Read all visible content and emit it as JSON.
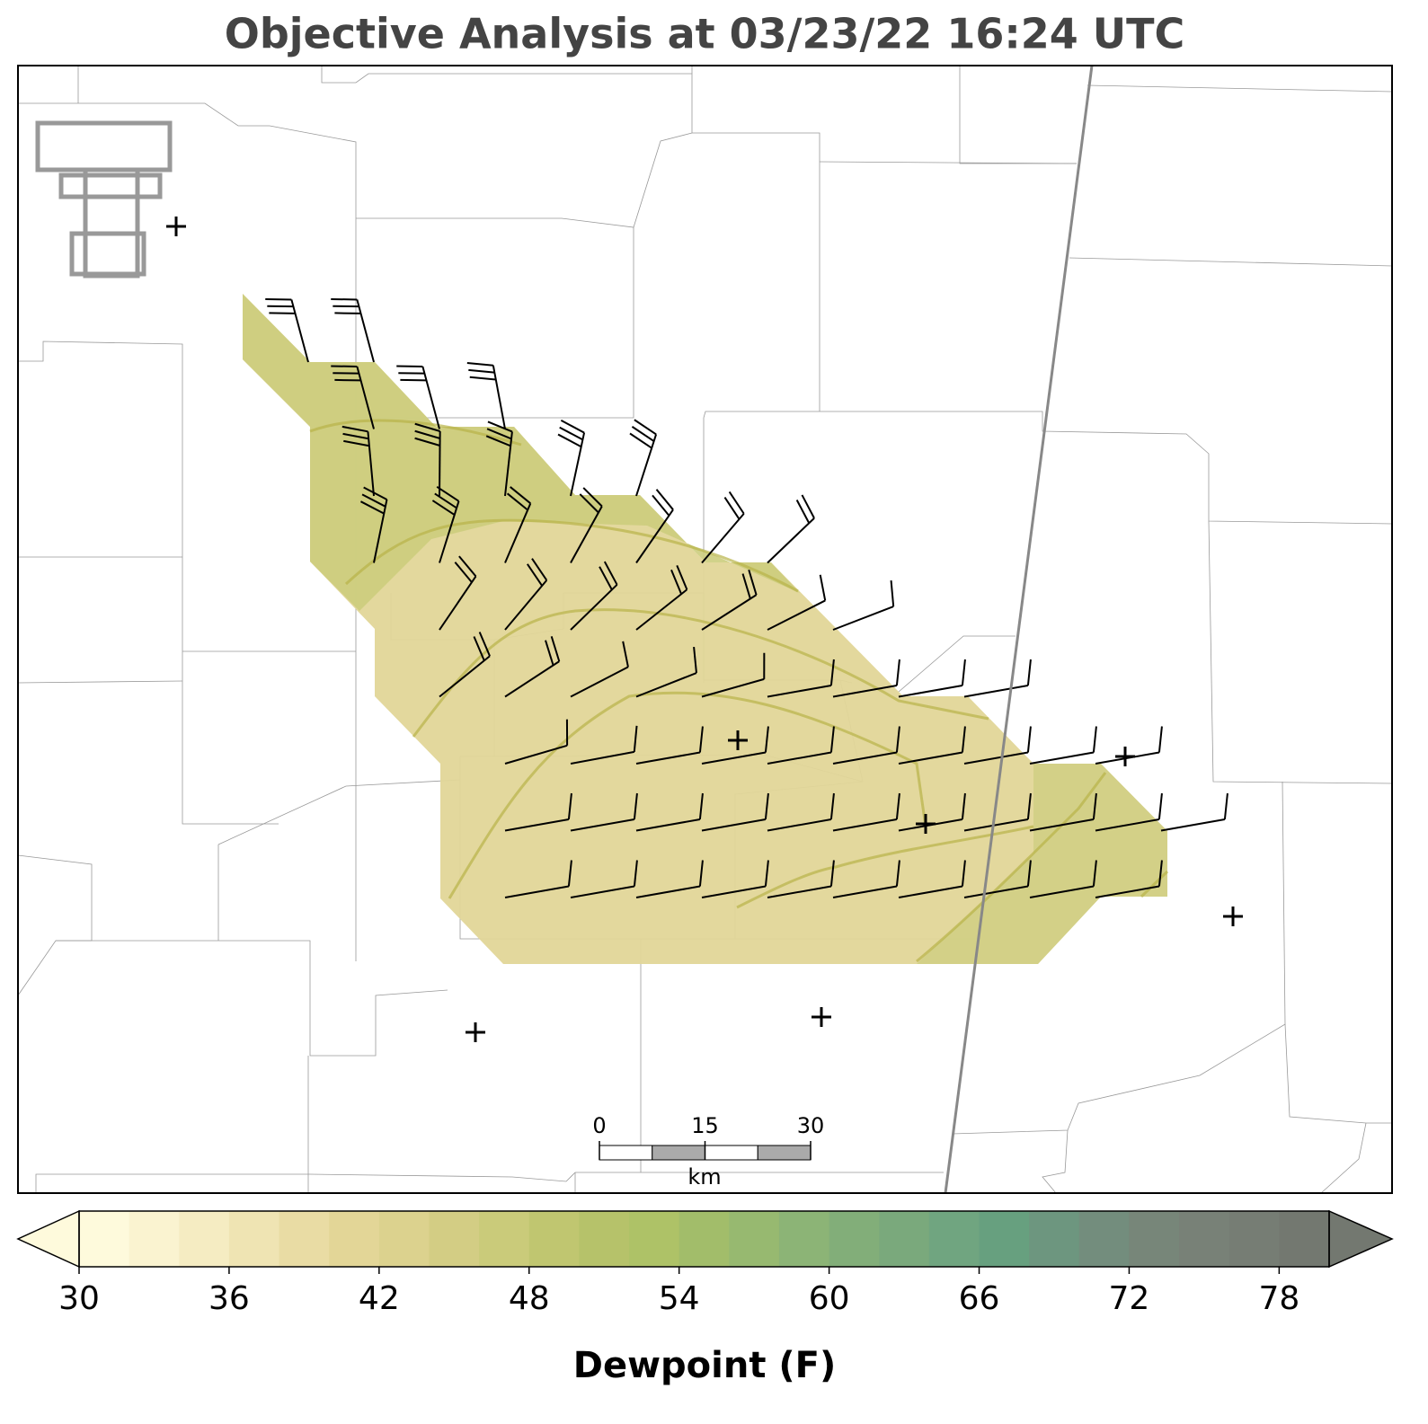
{
  "title": "Objective Analysis at 03/23/22 16:24 UTC",
  "colorbar": {
    "label": "Dewpoint (F)",
    "lim": [
      30,
      80
    ],
    "ticks": [
      30,
      36,
      42,
      48,
      54,
      60,
      66,
      72,
      78
    ],
    "colors": [
      "#fefadc",
      "#faf3d0",
      "#f5ecc2",
      "#efe4b3",
      "#e9dca4",
      "#e3d697",
      "#dcd28e",
      "#d3cd84",
      "#cacb7a",
      "#c0c670",
      "#b6c26a",
      "#aec267",
      "#a2bd6a",
      "#97b970",
      "#8cb476",
      "#82ae79",
      "#7aa97c",
      "#70a580",
      "#67a07f",
      "#6d967f",
      "#738d7d",
      "#778679",
      "#788177",
      "#767d74",
      "#737870"
    ]
  },
  "scale_bar": {
    "ticks": [
      0,
      15,
      30
    ],
    "unit": "km"
  }
}
